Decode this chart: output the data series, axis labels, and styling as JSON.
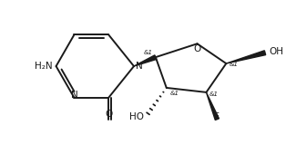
{
  "figsize": [
    3.14,
    1.7
  ],
  "dpi": 100,
  "background": "#ffffff",
  "line_color": "#1a1a1a",
  "lw": 1.4,
  "font_size": 7.5,
  "font_size_small": 6.0,
  "xlim": [
    0,
    314
  ],
  "ylim": [
    0,
    170
  ]
}
